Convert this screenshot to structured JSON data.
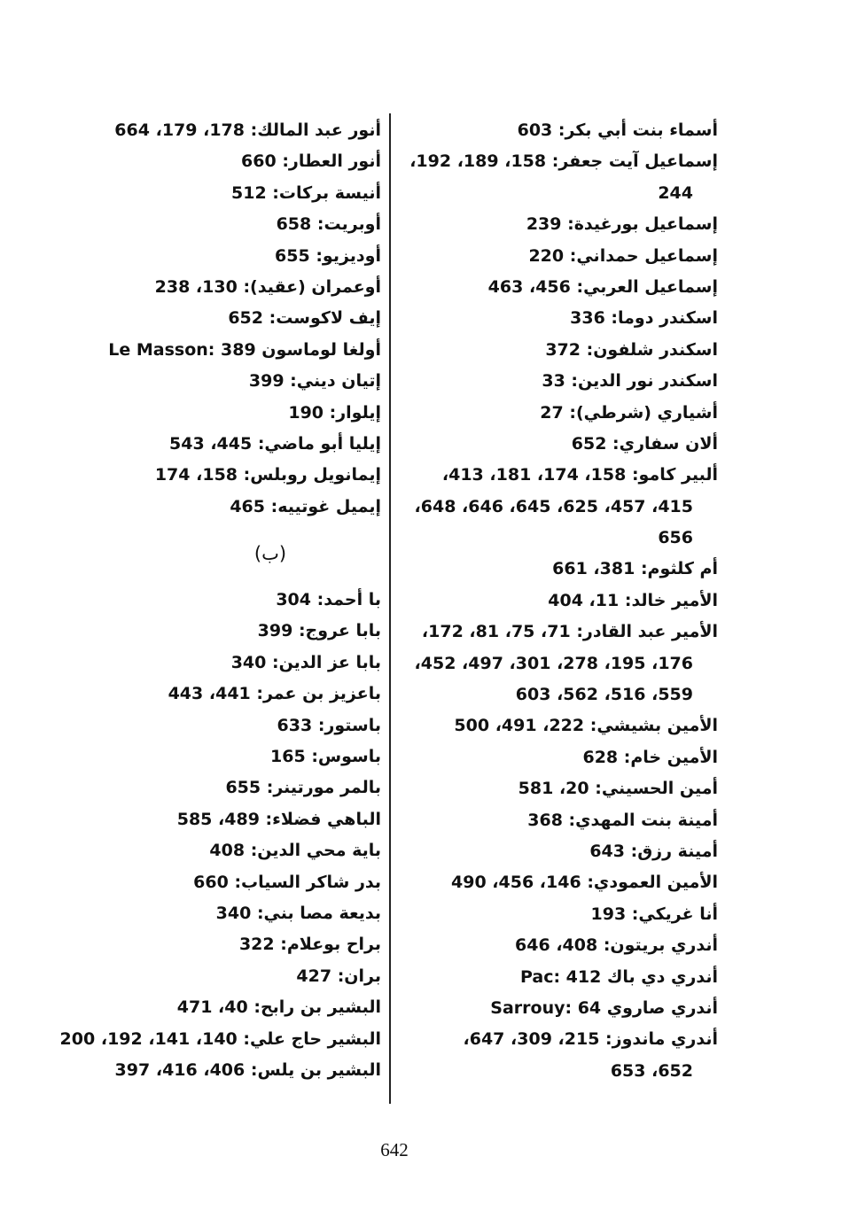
{
  "right_column": [
    {
      "lines": [
        "أسماء بنت أبي بكر: 603"
      ]
    },
    {
      "lines": [
        "إسماعيل آيت جعفر: 158، 189، 192،",
        "244"
      ]
    },
    {
      "lines": [
        "إسماعيل بورغيدة: 239"
      ]
    },
    {
      "lines": [
        "إسماعيل حمداني: 220"
      ]
    },
    {
      "lines": [
        "إسماعيل العربي: 456، 463"
      ]
    },
    {
      "lines": [
        "اسكندر دوما: 336"
      ]
    },
    {
      "lines": [
        "اسكندر شلفون: 372"
      ]
    },
    {
      "lines": [
        "اسكندر نور الدين: 33"
      ]
    },
    {
      "lines": [
        "أشياري (شرطي): 27"
      ]
    },
    {
      "lines": [
        "ألان سفاري: 652"
      ]
    },
    {
      "lines": [
        "ألبير كامو: 158، 174، 181، 413،",
        "415، 457، 625، 645، 646، 648،",
        "656"
      ]
    },
    {
      "lines": [
        "أم كلثوم: 381، 661"
      ]
    },
    {
      "lines": [
        "الأمير خالد: 11، 404"
      ]
    },
    {
      "lines": [
        "الأمير عبد القادر: 71، 75، 81، 172،",
        "176، 195، 278، 301، 497، 452،",
        "559، 516، 562، 603"
      ]
    },
    {
      "lines": [
        "الأمين بشيشي: 222، 491، 500"
      ]
    },
    {
      "lines": [
        "الأمين خام: 628"
      ]
    },
    {
      "lines": [
        "أمين الحسيني: 20، 581"
      ]
    },
    {
      "lines": [
        "أمينة بنت المهدي: 368"
      ]
    },
    {
      "lines": [
        "أمينة رزق: 643"
      ]
    },
    {
      "lines": [
        "الأمين العمودي: 146، 456، 490"
      ]
    },
    {
      "lines": [
        "أنا غريكي: 193"
      ]
    },
    {
      "lines": [
        "أندري بريتون: 408، 646"
      ]
    },
    {
      "lines": [
        "أندري دي باك Pac: 412"
      ]
    },
    {
      "lines": [
        "أندري صاروي Sarrouy: 64"
      ]
    },
    {
      "lines": [
        "أندري ماندوز: 215، 309، 647،",
        "652، 653"
      ]
    }
  ],
  "left_column_a": [
    "أنور عبد المالك: 178، 179، 664",
    "أنور العطار: 660",
    "أنيسة بركات: 512",
    "أوبريت: 658",
    "أوديزيو: 655",
    "أوعمران (عقيد): 130، 238",
    "إيف لاكوست: 652",
    "أولغا لوماسون Le Masson: 389",
    "إتيان ديني: 399",
    "إيلوار: 190",
    "إيليا أبو ماضي: 445، 543",
    "إيمانويل روبلس: 158، 174",
    "إيميل غوتييه: 465"
  ],
  "section_heading": "(ب)",
  "left_column_b": [
    "با أحمد: 304",
    "بابا عروج: 399",
    "بابا عز الدين: 340",
    "باعزيز بن عمر: 441، 443",
    "باستور: 633",
    "باسوس: 165",
    "بالمر مورتينر: 655",
    "الباهي فضلاء: 489، 585",
    "باية محي الدين: 408",
    "بدر شاكر السياب: 660",
    "بديعة مصا بني: 340",
    "براح بوعلام: 322",
    "بران: 427",
    "البشير بن رابح: 40، 471",
    "البشير حاج علي: 140، 141، 192، 200",
    "البشير بن يلس: 406، 416، 397"
  ],
  "page_number": "642"
}
